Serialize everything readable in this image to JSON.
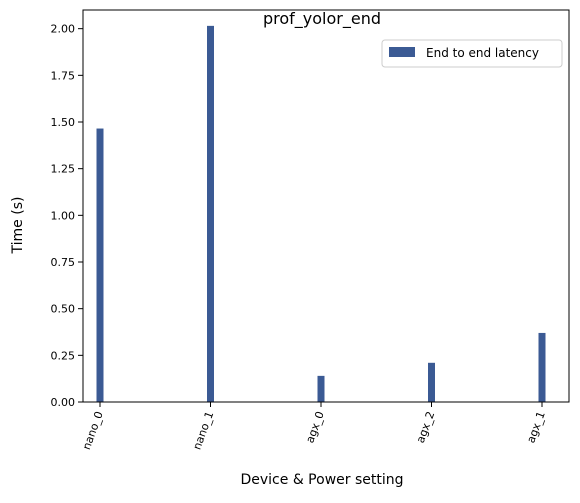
{
  "chart_data": {
    "type": "bar",
    "title": "prof_yolor_end",
    "xlabel": "Device & Power setting",
    "ylabel": "Time (s)",
    "categories": [
      "nano_0",
      "nano_1",
      "agx_0",
      "agx_2",
      "agx_1"
    ],
    "series": [
      {
        "name": "End to end latency",
        "values": [
          1.465,
          2.015,
          0.14,
          0.21,
          0.37
        ],
        "color": "#3b5a94"
      }
    ],
    "ylim": [
      0,
      2.1
    ],
    "yticks": [
      0.0,
      0.25,
      0.5,
      0.75,
      1.0,
      1.25,
      1.5,
      1.75,
      2.0
    ],
    "ytick_labels": [
      "0.00",
      "0.25",
      "0.50",
      "0.75",
      "1.00",
      "1.25",
      "1.50",
      "1.75",
      "2.00"
    ],
    "grid": false,
    "legend_position": "top-right"
  }
}
